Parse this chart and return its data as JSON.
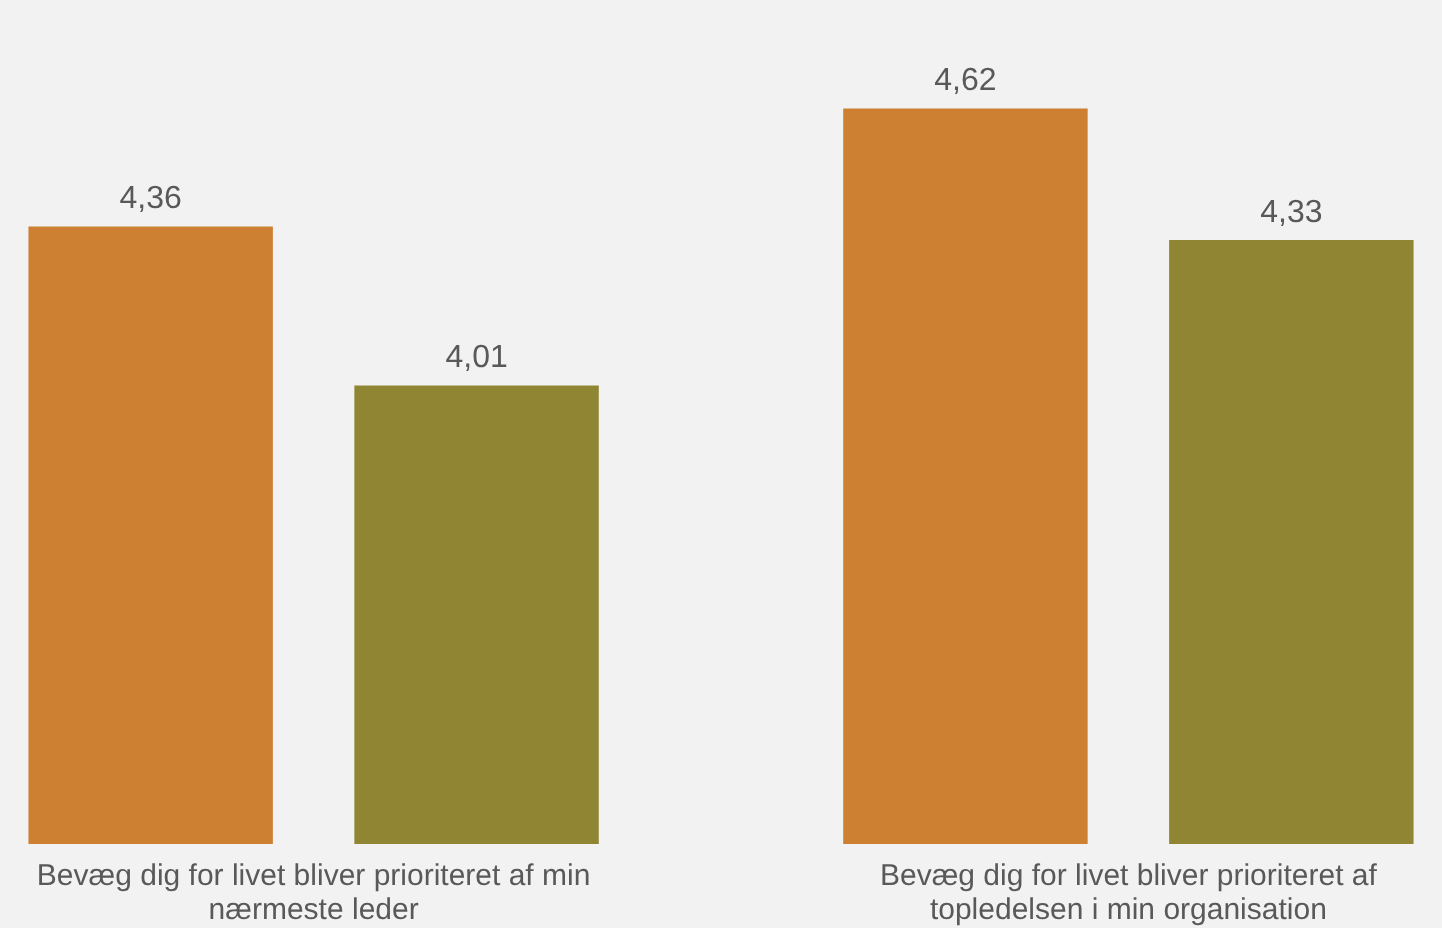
{
  "chart_data": {
    "type": "bar",
    "categories": [
      "Bevæg dig for livet bliver prioriteret af min nærmeste leder",
      "Bevæg dig for livet bliver prioriteret af topledelsen i min organisation"
    ],
    "series": [
      {
        "color": "#cd7f32",
        "values": [
          4.36,
          4.62
        ],
        "value_labels": [
          "4,36",
          "4,62"
        ]
      },
      {
        "color": "#8f8532",
        "values": [
          4.01,
          4.33
        ],
        "value_labels": [
          "4,01",
          "4,33"
        ]
      }
    ],
    "ylim": [
      3,
      4.85
    ],
    "grid": false,
    "tick_labels": "x"
  }
}
